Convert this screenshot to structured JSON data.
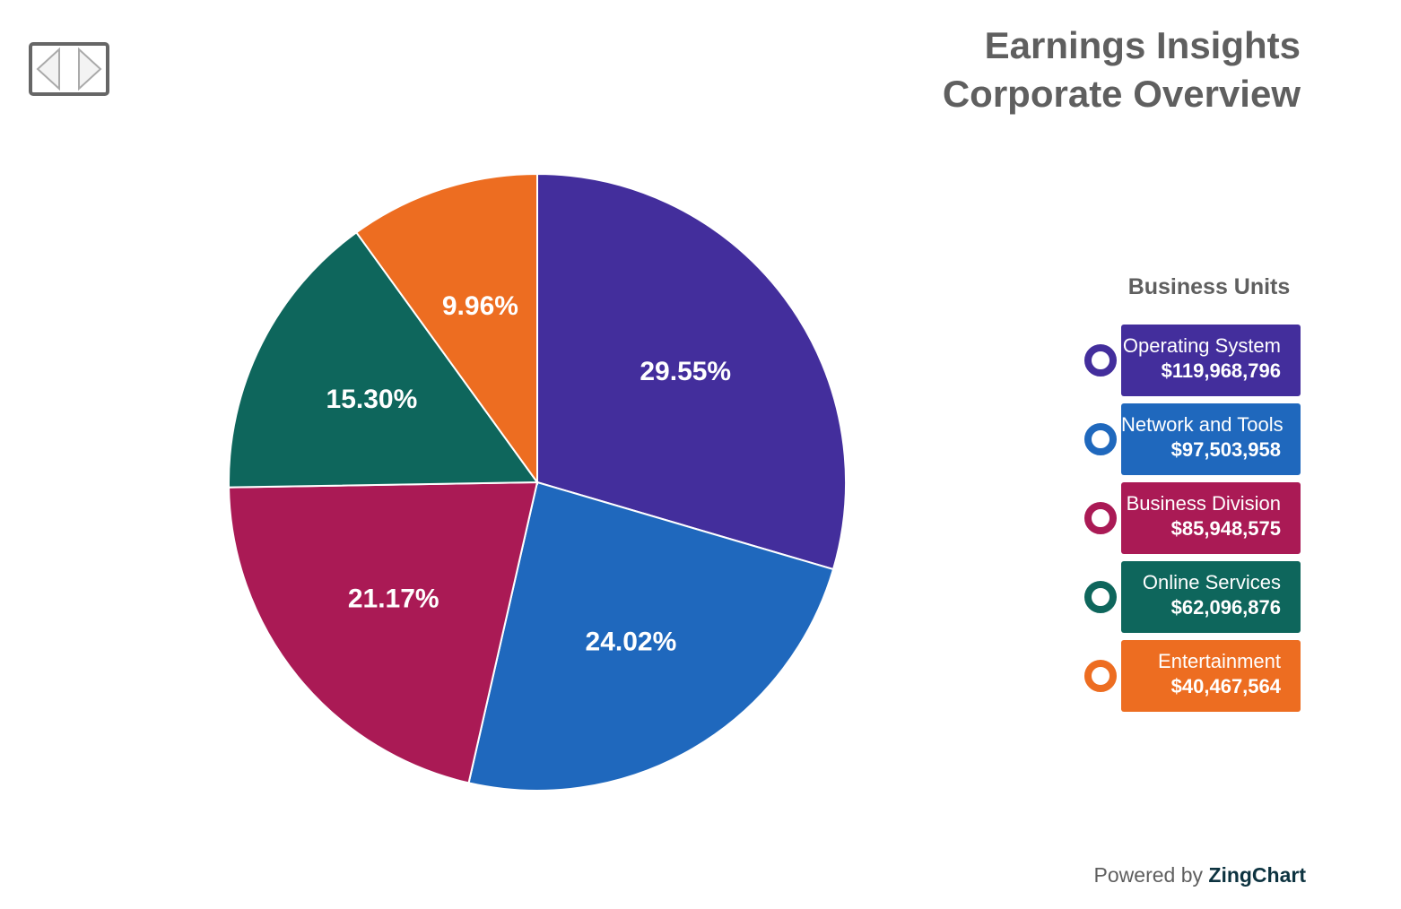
{
  "chart_data": {
    "type": "pie",
    "title": "Earnings Insights",
    "subtitle": "Corporate Overview",
    "legend_title": "Business Units",
    "legend_position": "right",
    "slices": [
      {
        "label": "Operating System",
        "value": 119968796,
        "value_text": "$119,968,796",
        "percent_label": "29.55%",
        "color": "#432e9c"
      },
      {
        "label": "Network and Tools",
        "value": 97503958,
        "value_text": "$97,503,958",
        "percent_label": "24.02%",
        "color": "#1f68bd"
      },
      {
        "label": "Business Division",
        "value": 85948575,
        "value_text": "$85,948,575",
        "percent_label": "21.17%",
        "color": "#aa1a55"
      },
      {
        "label": "Online Services",
        "value": 62096876,
        "value_text": "$62,096,876",
        "percent_label": "15.30%",
        "color": "#0e665c"
      },
      {
        "label": "Entertainment",
        "value": 40467564,
        "value_text": "$40,467,564",
        "percent_label": "9.96%",
        "color": "#ed6d21"
      }
    ]
  },
  "credit": {
    "prefix": "Powered by",
    "brand": "ZingChart"
  }
}
